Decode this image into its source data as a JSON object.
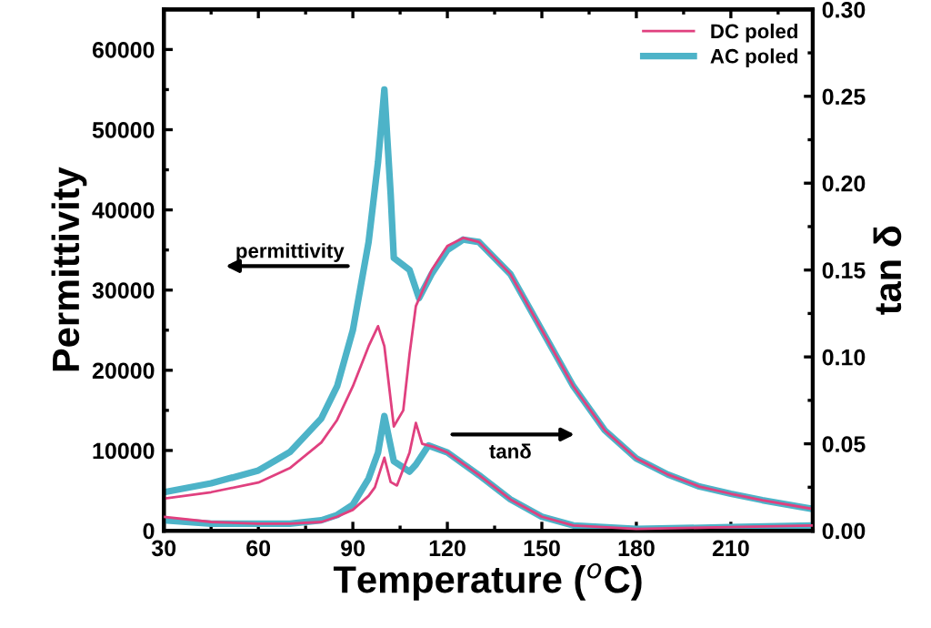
{
  "chart_data": {
    "type": "line",
    "xlabel": "Temperature ($^{o}$C)",
    "ylabel": "Permittivity",
    "y2label": "tan δ",
    "xlim": [
      30,
      236
    ],
    "xticks": [
      30,
      60,
      90,
      120,
      150,
      180,
      210
    ],
    "ylim": [
      0,
      65000
    ],
    "yticks": [
      0,
      10000,
      20000,
      30000,
      40000,
      50000,
      60000
    ],
    "y2lim": [
      0,
      0.3
    ],
    "y2ticks": [
      {
        "value": 0,
        "label": "0.00"
      },
      0.05,
      {
        "value": 0.1,
        "label": "0.10"
      },
      0.15,
      {
        "value": 0.2,
        "label": "0.20"
      },
      0.25,
      {
        "value": 0.3,
        "label": "0.30"
      }
    ],
    "legend": "top right",
    "grid": false,
    "marker": "none",
    "line_style": "solid",
    "annotations": [
      "permittivity",
      "tanδ"
    ],
    "series": [
      {
        "name": "DC poled",
        "color": "#e0407f",
        "x": [
          30,
          45,
          60,
          70,
          80,
          85,
          90,
          95,
          98,
          100,
          103,
          106,
          108,
          110,
          115,
          120,
          125,
          130,
          140,
          150,
          160,
          170,
          180,
          190,
          200,
          210,
          220,
          236
        ],
        "values": [
          4000,
          4800,
          6000,
          7800,
          11000,
          13800,
          18000,
          23000,
          25500,
          23000,
          13000,
          15000,
          22000,
          28000,
          32500,
          35500,
          36500,
          36000,
          32000,
          25000,
          18000,
          12500,
          9000,
          7000,
          5500,
          4600,
          3800,
          2700
        ]
      },
      {
        "name": "AC poled",
        "color": "#4db3c8",
        "x": [
          30,
          45,
          60,
          70,
          80,
          85,
          90,
          95,
          98,
          100,
          102,
          103,
          108,
          111,
          115,
          120,
          125,
          130,
          140,
          150,
          160,
          170,
          180,
          190,
          200,
          210,
          220,
          236
        ],
        "values": [
          4800,
          5900,
          7500,
          9800,
          14000,
          18000,
          25000,
          36000,
          46000,
          55000,
          42000,
          34000,
          32500,
          29000,
          32000,
          35000,
          36300,
          36000,
          32000,
          25000,
          18000,
          12500,
          9000,
          7000,
          5500,
          4600,
          3800,
          2700
        ]
      },
      {
        "axis": "y2",
        "color": "#e0407f",
        "x": [
          30,
          45,
          60,
          70,
          80,
          85,
          90,
          95,
          97,
          100,
          102,
          104,
          108,
          110,
          112,
          116,
          120,
          130,
          140,
          150,
          160,
          180,
          210,
          236
        ],
        "values": [
          0.008,
          0.005,
          0.004,
          0.004,
          0.005,
          0.008,
          0.012,
          0.02,
          0.025,
          0.042,
          0.028,
          0.026,
          0.045,
          0.062,
          0.05,
          0.048,
          0.045,
          0.032,
          0.018,
          0.008,
          0.003,
          0.001,
          0.002,
          0.003
        ]
      },
      {
        "axis": "y2",
        "color": "#4db3c8",
        "x": [
          30,
          45,
          60,
          70,
          80,
          85,
          90,
          95,
          98,
          100,
          103,
          108,
          110,
          114,
          120,
          130,
          140,
          150,
          160,
          180,
          210,
          236
        ],
        "values": [
          0.006,
          0.004,
          0.004,
          0.004,
          0.006,
          0.009,
          0.015,
          0.03,
          0.045,
          0.066,
          0.04,
          0.034,
          0.038,
          0.049,
          0.045,
          0.032,
          0.018,
          0.008,
          0.003,
          0.001,
          0.002,
          0.003
        ]
      }
    ]
  }
}
